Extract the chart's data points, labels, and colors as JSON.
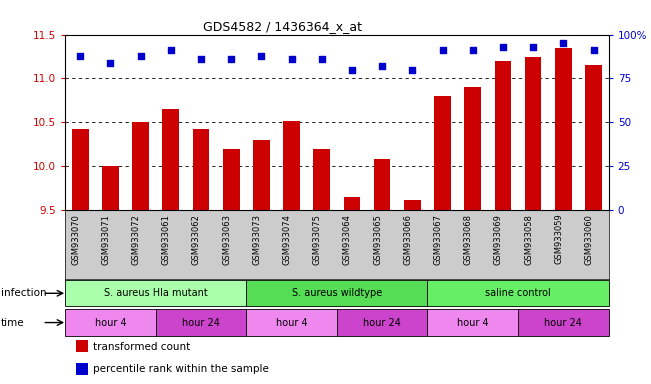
{
  "title": "GDS4582 / 1436364_x_at",
  "samples": [
    "GSM933070",
    "GSM933071",
    "GSM933072",
    "GSM933061",
    "GSM933062",
    "GSM933063",
    "GSM933073",
    "GSM933074",
    "GSM933075",
    "GSM933064",
    "GSM933065",
    "GSM933066",
    "GSM933067",
    "GSM933068",
    "GSM933069",
    "GSM933058",
    "GSM933059",
    "GSM933060"
  ],
  "bar_values": [
    10.42,
    10.0,
    10.5,
    10.65,
    10.42,
    10.2,
    10.3,
    10.52,
    10.2,
    9.65,
    10.08,
    9.62,
    10.8,
    10.9,
    11.2,
    11.25,
    11.35,
    11.15
  ],
  "dot_values": [
    88,
    84,
    88,
    91,
    86,
    86,
    88,
    86,
    86,
    80,
    82,
    80,
    91,
    91,
    93,
    93,
    95,
    91
  ],
  "ylim": [
    9.5,
    11.5
  ],
  "yticks": [
    9.5,
    10.0,
    10.5,
    11.0,
    11.5
  ],
  "y2lim": [
    0,
    100
  ],
  "y2ticks": [
    0,
    25,
    50,
    75,
    100
  ],
  "bar_color": "#cc0000",
  "dot_color": "#0000cc",
  "grid_color": "#000000",
  "bg_color": "#ffffff",
  "xlabel_color": "#cc0000",
  "infection_groups": [
    {
      "label": "S. aureus Hla mutant",
      "start": 0,
      "end": 6,
      "color": "#aaffaa"
    },
    {
      "label": "S. aureus wildtype",
      "start": 6,
      "end": 12,
      "color": "#55dd55"
    },
    {
      "label": "saline control",
      "start": 12,
      "end": 18,
      "color": "#66ee66"
    }
  ],
  "time_groups": [
    {
      "label": "hour 4",
      "start": 0,
      "end": 3,
      "color": "#ee88ee"
    },
    {
      "label": "hour 24",
      "start": 3,
      "end": 6,
      "color": "#cc44cc"
    },
    {
      "label": "hour 4",
      "start": 6,
      "end": 9,
      "color": "#ee88ee"
    },
    {
      "label": "hour 24",
      "start": 9,
      "end": 12,
      "color": "#cc44cc"
    },
    {
      "label": "hour 4",
      "start": 12,
      "end": 15,
      "color": "#ee88ee"
    },
    {
      "label": "hour 24",
      "start": 15,
      "end": 18,
      "color": "#cc44cc"
    }
  ],
  "infection_label": "infection",
  "time_label": "time",
  "legend_items": [
    {
      "label": "transformed count",
      "color": "#cc0000",
      "marker": "s"
    },
    {
      "label": "percentile rank within the sample",
      "color": "#0000cc",
      "marker": "s"
    }
  ],
  "xtick_bg": "#cccccc"
}
